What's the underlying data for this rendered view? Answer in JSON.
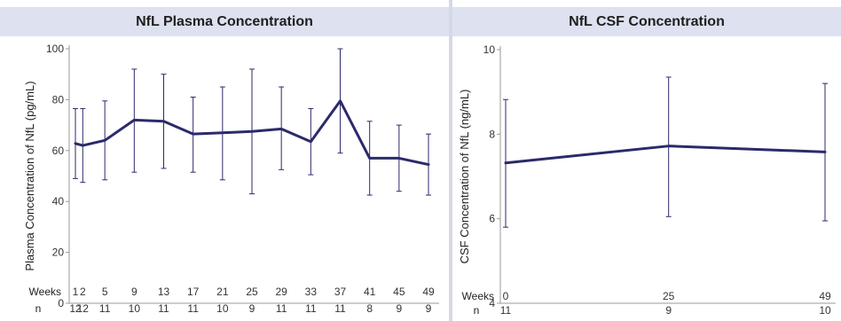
{
  "colors": {
    "line": "#2b2a6b",
    "axis": "#999999",
    "header_bg": "#dde1f0"
  },
  "chart_data": [
    {
      "type": "line",
      "title": "NfL Plasma Concentration",
      "ylabel": "Plasma Concentration of NfL (pg/mL)",
      "ylim": [
        0,
        100
      ],
      "yticks": [
        0,
        20,
        40,
        60,
        80,
        100
      ],
      "row_labels": {
        "weeks": "Weeks",
        "n": "n"
      },
      "x": [
        1,
        2,
        5,
        9,
        13,
        17,
        21,
        25,
        29,
        33,
        37,
        41,
        45,
        49
      ],
      "x_tick_labels": [
        "1",
        "2",
        "5",
        "9",
        "13",
        "17",
        "21",
        "25",
        "29",
        "33",
        "37",
        "41",
        "45",
        "49"
      ],
      "n": [
        "12",
        "12",
        "11",
        "10",
        "11",
        "11",
        "10",
        "9",
        "11",
        "11",
        "11",
        "8",
        "9",
        "9"
      ],
      "series": [
        {
          "values": [
            62.8,
            62.0,
            64.0,
            72.0,
            71.5,
            66.5,
            67.0,
            67.5,
            68.5,
            63.5,
            79.5,
            57.0,
            57.0,
            54.5
          ],
          "err_low": [
            49.0,
            47.5,
            48.5,
            51.5,
            53.0,
            51.5,
            48.5,
            43.0,
            52.5,
            50.5,
            59.0,
            42.5,
            44.0,
            42.5
          ],
          "err_high": [
            76.5,
            76.5,
            79.5,
            92.0,
            90.0,
            81.0,
            85.0,
            92.0,
            85.0,
            76.5,
            100.0,
            71.5,
            70.0,
            66.5
          ]
        }
      ]
    },
    {
      "type": "line",
      "title": "NfL CSF Concentration",
      "ylabel": "CSF Concentration of NfL (ng/mL)",
      "ylim": [
        4,
        10
      ],
      "yticks": [
        4,
        6,
        8,
        10
      ],
      "row_labels": {
        "weeks": "Weeks",
        "n": "n"
      },
      "x": [
        0,
        25,
        49
      ],
      "x_tick_labels": [
        "0",
        "25",
        "49"
      ],
      "n": [
        "11",
        "9",
        "10"
      ],
      "series": [
        {
          "values": [
            7.32,
            7.72,
            7.58
          ],
          "err_low": [
            5.8,
            6.05,
            5.95
          ],
          "err_high": [
            8.82,
            9.35,
            9.2
          ]
        }
      ]
    }
  ]
}
